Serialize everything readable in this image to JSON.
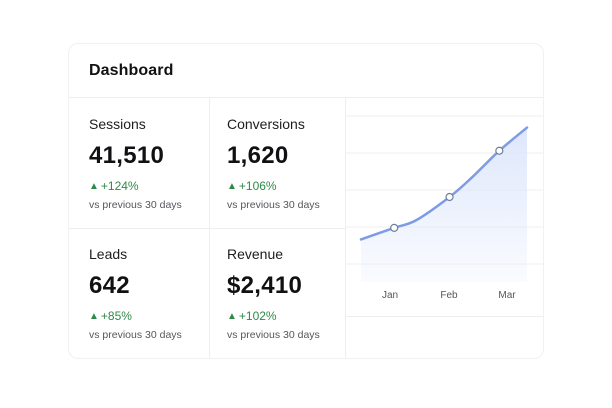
{
  "dashboard": {
    "title": "Dashboard",
    "delta_color": "#2e8a47",
    "metrics": [
      {
        "label": "Sessions",
        "value": "41,510",
        "delta": "+124%",
        "delta_icon": "triangle-up-icon",
        "subtext": "vs previous 30 days"
      },
      {
        "label": "Conversions",
        "value": "1,620",
        "delta": "+106%",
        "delta_icon": "triangle-up-icon",
        "subtext": "vs previous 30 days"
      },
      {
        "label": "Leads",
        "value": "642",
        "delta": "+85%",
        "delta_icon": "triangle-up-icon",
        "subtext": "vs previous 30 days"
      },
      {
        "label": "Revenue",
        "value": "$2,410",
        "delta": "+102%",
        "delta_icon": "triangle-up-icon",
        "subtext": "vs previous 30 days"
      }
    ]
  },
  "chart_data": {
    "type": "area",
    "categories": [
      "Jan",
      "Feb",
      "Mar"
    ],
    "line_color": "#7f9be6",
    "fill_color": "#dce6fb",
    "grid": true,
    "x": [
      0,
      0.6,
      1.0,
      1.6,
      2.0,
      2.5,
      3.0
    ],
    "y": [
      38,
      41,
      43,
      49,
      54,
      61,
      67
    ],
    "markers": [
      {
        "x": 0.6,
        "y": 41
      },
      {
        "x": 1.6,
        "y": 49
      },
      {
        "x": 2.5,
        "y": 61
      }
    ],
    "xlim": [
      0,
      3
    ],
    "ylim": [
      28,
      70
    ]
  }
}
